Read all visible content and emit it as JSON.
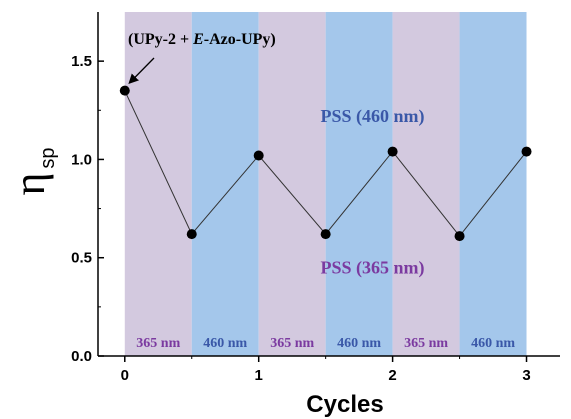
{
  "chart_data": {
    "type": "line",
    "xlabel": "Cycles",
    "ylabel_main": "η",
    "ylabel_sub": "sp",
    "xlim": [
      -0.2,
      3.25
    ],
    "ylim": [
      0.0,
      1.75
    ],
    "x_ticks": [
      0,
      1,
      2,
      3
    ],
    "x_tick_labels": [
      "0",
      "1",
      "2",
      "3"
    ],
    "y_ticks": [
      0.0,
      0.5,
      1.0,
      1.5
    ],
    "y_tick_labels": [
      "0.0",
      "0.5",
      "1.0",
      "1.5"
    ],
    "grid": false,
    "series": [
      {
        "x": [
          0,
          0.5,
          1,
          1.5,
          2,
          2.5,
          3
        ],
        "y": [
          1.35,
          0.62,
          1.02,
          0.62,
          1.04,
          0.61,
          1.04
        ]
      }
    ],
    "bands": [
      {
        "x0": 0.0,
        "x1": 0.5,
        "label": "365 nm",
        "color": "#d3c9df",
        "text_color": "#7b3aa0"
      },
      {
        "x0": 0.5,
        "x1": 1.0,
        "label": "460 nm",
        "color": "#a4c7eb",
        "text_color": "#3a58a8"
      },
      {
        "x0": 1.0,
        "x1": 1.5,
        "label": "365 nm",
        "color": "#d3c9df",
        "text_color": "#7b3aa0"
      },
      {
        "x0": 1.5,
        "x1": 2.0,
        "label": "460 nm",
        "color": "#a4c7eb",
        "text_color": "#3a58a8"
      },
      {
        "x0": 2.0,
        "x1": 2.5,
        "label": "365 nm",
        "color": "#d3c9df",
        "text_color": "#7b3aa0"
      },
      {
        "x0": 2.5,
        "x1": 3.0,
        "label": "460 nm",
        "color": "#a4c7eb",
        "text_color": "#3a58a8"
      }
    ],
    "annotations": [
      {
        "text": "PSS (460 nm)",
        "x": 1.85,
        "y": 1.22,
        "color": "#3a58a8"
      },
      {
        "text": "PSS (365 nm)",
        "x": 1.85,
        "y": 0.45,
        "color": "#7b3aa0"
      }
    ],
    "sample_label": {
      "part1": "(UPy-2 + ",
      "part2": "E",
      "part3": "-Azo-UPy)",
      "arrow_to": [
        0,
        1.35
      ]
    },
    "colors": {
      "line": "#333333",
      "marker": "#000000"
    }
  }
}
